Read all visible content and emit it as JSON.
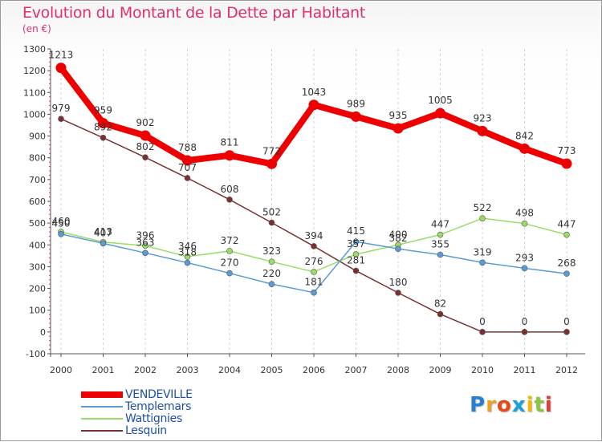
{
  "title": "Evolution du Montant de la Dette par Habitant",
  "unit": "(en €)",
  "logo": {
    "letters": [
      {
        "ch": "P",
        "color": "#2a7fd0"
      },
      {
        "ch": "r",
        "color": "#f0a020"
      },
      {
        "ch": "o",
        "color": "#e64a19"
      },
      {
        "ch": "x",
        "color": "#1aa0dc"
      },
      {
        "ch": "i",
        "color": "#f5b800"
      },
      {
        "ch": "t",
        "color": "#8cc63f"
      },
      {
        "ch": "i",
        "color": "#e53935"
      }
    ]
  },
  "chart_data": {
    "type": "line",
    "title": "Evolution du Montant de la Dette par Habitant",
    "subtitle": "(en €)",
    "x": [
      "2000",
      "2001",
      "2002",
      "2003",
      "2004",
      "2005",
      "2006",
      "2007",
      "2008",
      "2009",
      "2010",
      "2011",
      "2012"
    ],
    "yticks": [
      -100,
      0,
      100,
      200,
      300,
      400,
      500,
      600,
      700,
      800,
      900,
      1000,
      1100,
      1200,
      1300
    ],
    "ylim": [
      -100,
      1300
    ],
    "grid": "vertical",
    "legend_position": "bottom-left",
    "series": [
      {
        "name": "VENDEVILLE",
        "color": "#ee0000",
        "values": [
          1213,
          959,
          902,
          788,
          811,
          772,
          1043,
          989,
          935,
          1005,
          923,
          842,
          773
        ],
        "labels": [
          "1213",
          "959",
          "902",
          "788",
          "811",
          "772",
          "1043",
          "989",
          "935",
          "1005",
          "923",
          "842",
          "773"
        ]
      },
      {
        "name": "Templemars",
        "color": "#5b9bd5",
        "values": [
          450,
          407,
          363,
          318,
          270,
          220,
          181,
          415,
          382,
          355,
          319,
          293,
          268
        ],
        "labels": [
          "450",
          "407",
          "363",
          "318",
          "270",
          "220",
          "181",
          "415",
          "382",
          "355",
          "319",
          "293",
          "268"
        ]
      },
      {
        "name": "Wattignies",
        "color": "#99dd66",
        "values": [
          460,
          413,
          396,
          346,
          372,
          323,
          276,
          357,
          400,
          447,
          522,
          498,
          447
        ],
        "labels": [
          "460",
          "413",
          "396",
          "346",
          "372",
          "323",
          "276",
          "357",
          "400",
          "447",
          "522",
          "498",
          "447"
        ]
      },
      {
        "name": "Lesquin",
        "color": "#7a3030",
        "values": [
          979,
          892,
          802,
          707,
          608,
          502,
          394,
          281,
          180,
          82,
          0,
          0,
          0
        ],
        "labels": [
          "979",
          "892",
          "802",
          "707",
          "608",
          "502",
          "394",
          "281",
          "180",
          "82",
          "0",
          "0",
          "0"
        ]
      }
    ]
  }
}
